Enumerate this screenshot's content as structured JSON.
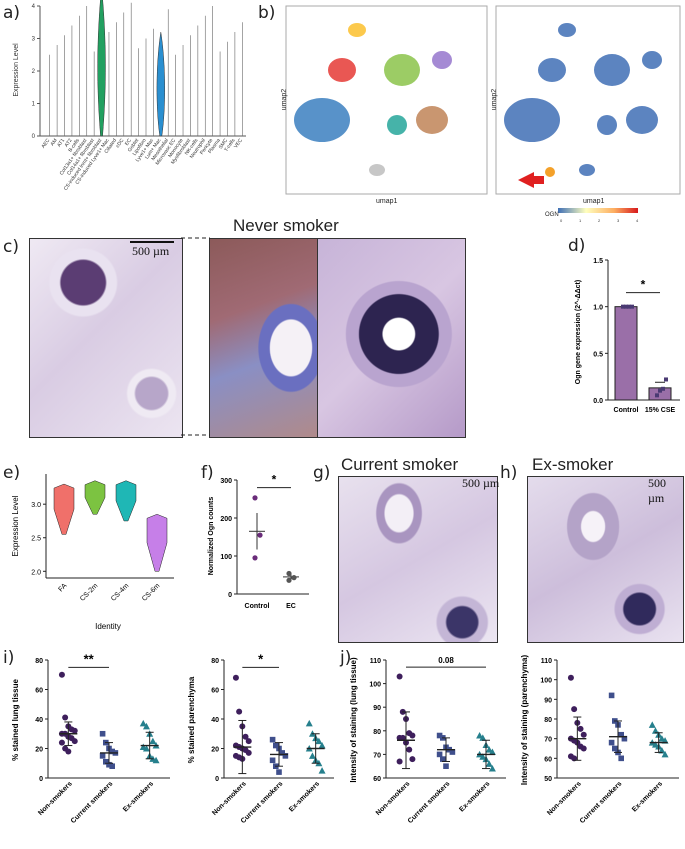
{
  "panels": {
    "a": "a)",
    "b": "b)",
    "c": "c)",
    "d": "d)",
    "e": "e)",
    "f": "f)",
    "g": "g)",
    "h": "h)",
    "i": "i)",
    "j": "j)"
  },
  "titles": {
    "never_smoker": "Never smoker",
    "current_smoker": "Current smoker",
    "ex_smoker": "Ex-smoker"
  },
  "scale_bar": "500 µm",
  "colors": {
    "violin_green": "#22a060",
    "violin_blue": "#2a8fd0",
    "purple": "#9a6fa8",
    "dot_dark": "#3e1f5c",
    "dot_teal": "#26808d",
    "dot_green": "#3e8e3a",
    "stain_bg": "#c8b7d6"
  },
  "umap": {
    "xlabel": "umap1",
    "ylabel": "umap2",
    "legend_label": "OGN",
    "legend_ticks": [
      "0",
      "1",
      "2",
      "3",
      "4"
    ]
  },
  "chart_data": [
    {
      "id": "a",
      "type": "violin",
      "ylabel": "Expression Level",
      "ylim": [
        0,
        4
      ],
      "yticks": [
        0,
        1,
        2,
        3,
        4
      ],
      "categories": [
        "AEC",
        "AM",
        "AT1",
        "AT2",
        "B-cells",
        "Col13a1+ fibroblast",
        "Col14a1+ fibroblast",
        "CS-induced Inmt+ fibroblast",
        "CS-induced Lyve1+ Mac",
        "Ciliated",
        "cDC",
        "EC",
        "Goblet",
        "Lipofibro",
        "Lyve1+ Mac",
        "Lum+ Mac",
        "Mesothelial",
        "Microvasc EC",
        "Monocyte",
        "Myofibroblast",
        "NK-cells",
        "Neutrophil",
        "Pericyte",
        "Plasma",
        "SMC",
        "T-cells",
        "VEC"
      ],
      "highlight": [
        {
          "category_index": 7,
          "value": 4.6,
          "color": "green"
        },
        {
          "category_index": 15,
          "value": 3.2,
          "color": "blue"
        }
      ],
      "note": "only outlines of other violins visible"
    },
    {
      "id": "d",
      "type": "bar",
      "ylabel": "Ogn gene expression (2^-ΔΔct)",
      "categories": [
        "Control",
        "15% CSE"
      ],
      "values": [
        1.0,
        0.13
      ],
      "error": [
        0.0,
        0.06
      ],
      "points": [
        [
          1.0,
          1.0,
          1.0,
          1.0
        ],
        [
          0.05,
          0.1,
          0.12,
          0.22
        ]
      ],
      "ylim": [
        0,
        1.5
      ],
      "yticks": [
        "0.0",
        "0.5",
        "1.0",
        "1.5"
      ],
      "significance": "*"
    },
    {
      "id": "e",
      "type": "violin",
      "ylabel": "Expression Level",
      "xlabel": "Identity",
      "categories": [
        "FA",
        "CS-2m",
        "CS-4m",
        "CS-6m"
      ],
      "ranges": [
        [
          2.55,
          3.3
        ],
        [
          2.85,
          3.35
        ],
        [
          2.75,
          3.35
        ],
        [
          2.0,
          2.85
        ]
      ],
      "colors": [
        "#f0706a",
        "#7cc341",
        "#1fb7b5",
        "#c67fe8"
      ],
      "ylim": [
        1.9,
        3.45
      ],
      "yticks": [
        "2.0",
        "2.5",
        "3.0"
      ]
    },
    {
      "id": "f",
      "type": "scatter",
      "ylabel": "Normalized Ogn counts",
      "categories": [
        "Control",
        "EC"
      ],
      "points": [
        [
          253,
          155,
          95
        ],
        [
          54,
          43,
          36
        ]
      ],
      "mean": [
        165,
        45
      ],
      "error": [
        48,
        7
      ],
      "ylim": [
        0,
        300
      ],
      "yticks": [
        "0",
        "100",
        "200",
        "300"
      ],
      "significance": "*"
    },
    {
      "id": "i1",
      "type": "scatter",
      "ylabel": "% stained lung tissue",
      "categories": [
        "Non-smokers",
        "Current smokers",
        "Ex-smokers"
      ],
      "points": [
        [
          70,
          41,
          35,
          33,
          32,
          30,
          30,
          28,
          27,
          25,
          24,
          20,
          18
        ],
        [
          30,
          24,
          20,
          18,
          17,
          15,
          11,
          9,
          8
        ],
        [
          37,
          35,
          30,
          25,
          22,
          21,
          20,
          15,
          13,
          12
        ]
      ],
      "mean": [
        30,
        17,
        22
      ],
      "sd": [
        8,
        7,
        9
      ],
      "ylim": [
        0,
        80
      ],
      "yticks": [
        "0",
        "20",
        "40",
        "60",
        "80"
      ],
      "significance": "**"
    },
    {
      "id": "i2",
      "type": "scatter",
      "ylabel": "% stained parenchyma",
      "categories": [
        "Non-smokers",
        "Current smokers",
        "Ex-smokers"
      ],
      "points": [
        [
          68,
          45,
          35,
          28,
          25,
          22,
          21,
          20,
          19,
          17,
          15,
          14,
          13
        ],
        [
          26,
          22,
          20,
          17,
          15,
          12,
          8,
          4
        ],
        [
          37,
          30,
          27,
          25,
          22,
          20,
          15,
          12,
          10,
          5
        ]
      ],
      "mean": [
        21,
        16,
        20
      ],
      "sd": [
        18,
        8,
        10
      ],
      "ylim": [
        0,
        80
      ],
      "yticks": [
        "0",
        "20",
        "40",
        "60",
        "80"
      ],
      "significance": "*"
    },
    {
      "id": "j1",
      "type": "scatter",
      "ylabel": "Intensity of staining (lung tissue)",
      "categories": [
        "Non-smokers",
        "Current smokers",
        "Ex-smokers"
      ],
      "points": [
        [
          103,
          88,
          85,
          79,
          78,
          77,
          77,
          75,
          72,
          68,
          67
        ],
        [
          78,
          77,
          73,
          72,
          71,
          70,
          68,
          65
        ],
        [
          78,
          77,
          74,
          72,
          71,
          70,
          69,
          68,
          66,
          64
        ]
      ],
      "mean": [
        76,
        72,
        70
      ],
      "sd": [
        12,
        5,
        6
      ],
      "ylim": [
        60,
        110
      ],
      "yticks": [
        "60",
        "70",
        "80",
        "90",
        "100",
        "110"
      ],
      "significance": "0.08"
    },
    {
      "id": "j2",
      "type": "scatter",
      "ylabel": "Intensity of staining (parenchyma)",
      "categories": [
        "Non-smokers",
        "Current smokers",
        "Ex-smokers"
      ],
      "points": [
        [
          101,
          85,
          78,
          75,
          72,
          70,
          69,
          68,
          66,
          65,
          61,
          60
        ],
        [
          92,
          79,
          77,
          72,
          70,
          68,
          65,
          63,
          60
        ],
        [
          77,
          74,
          72,
          70,
          69,
          68,
          67,
          66,
          64,
          62
        ]
      ],
      "mean": [
        70,
        71,
        68
      ],
      "sd": [
        11,
        8,
        5
      ],
      "ylim": [
        50,
        110
      ],
      "yticks": [
        "50",
        "60",
        "70",
        "80",
        "90",
        "100",
        "110"
      ],
      "significance": ""
    }
  ]
}
